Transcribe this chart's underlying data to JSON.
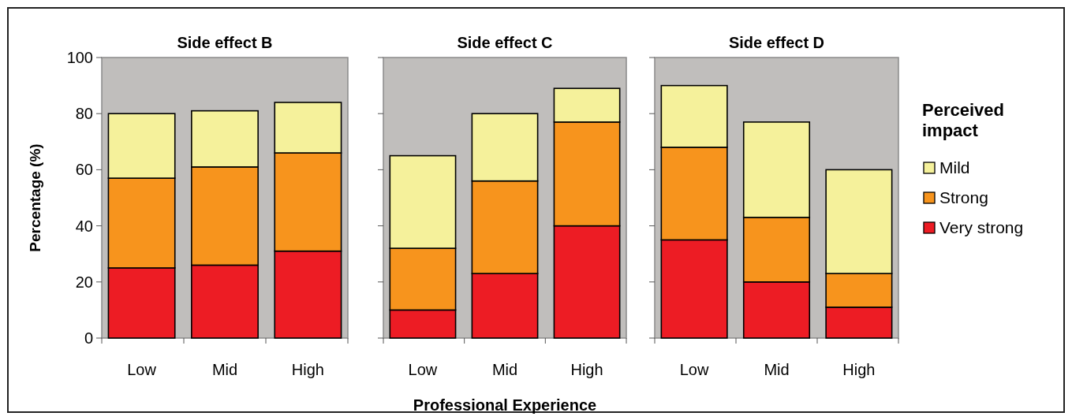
{
  "chart_data": [
    {
      "type": "bar",
      "stacked": true,
      "title": "Side effect B",
      "ylabel": "Percentage (%)",
      "categories": [
        "Low",
        "Mid",
        "High"
      ],
      "ylim": [
        0,
        100
      ],
      "yticks": [
        0,
        20,
        40,
        60,
        80,
        100
      ],
      "series": [
        {
          "color": "#ed1c24",
          "values": [
            25,
            26,
            31
          ]
        },
        {
          "color": "#f7941d",
          "values": [
            32,
            35,
            35
          ]
        },
        {
          "color": "#f5f19b",
          "values": [
            23,
            20,
            18
          ]
        }
      ]
    },
    {
      "type": "bar",
      "stacked": true,
      "title": "Side effect C",
      "xlabel": "Professional Experience",
      "categories": [
        "Low",
        "Mid",
        "High"
      ],
      "ylim": [
        0,
        100
      ],
      "yticks": [
        0,
        20,
        40,
        60,
        80,
        100
      ],
      "tick_labels": "x",
      "series": [
        {
          "color": "#ed1c24",
          "values": [
            10,
            23,
            40
          ]
        },
        {
          "color": "#f7941d",
          "values": [
            22,
            33,
            37
          ]
        },
        {
          "color": "#f5f19b",
          "values": [
            33,
            24,
            12
          ]
        }
      ]
    },
    {
      "type": "bar",
      "stacked": true,
      "title": "Side effect D",
      "legend_title": "Perceived impact",
      "legend": "right",
      "categories": [
        "Low",
        "Mid",
        "High"
      ],
      "ylim": [
        0,
        100
      ],
      "yticks": [
        0,
        20,
        40,
        60,
        80,
        100
      ],
      "tick_labels": "x",
      "series": [
        {
          "name": "Very strong",
          "color": "#ed1c24",
          "values": [
            35,
            20,
            11
          ]
        },
        {
          "name": "Strong",
          "color": "#f7941d",
          "values": [
            33,
            23,
            12
          ]
        },
        {
          "name": "Mild",
          "color": "#f5f19b",
          "values": [
            22,
            34,
            37
          ]
        }
      ]
    }
  ]
}
